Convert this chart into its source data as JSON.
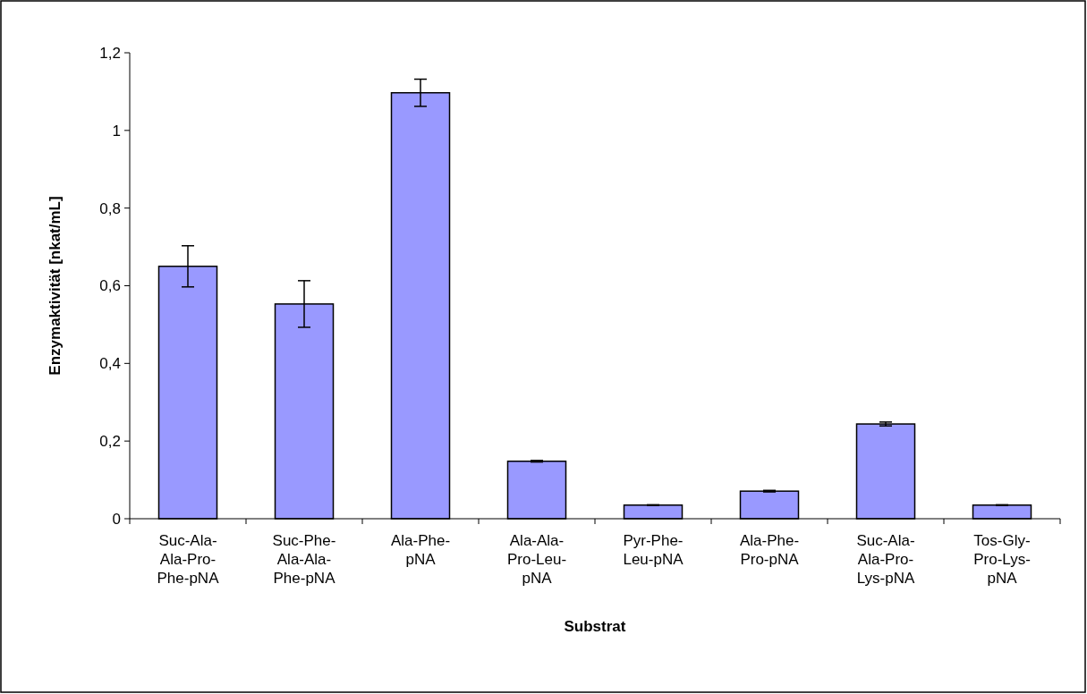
{
  "chart_data": {
    "type": "bar",
    "xlabel": "Substrat",
    "ylabel": "Enzymaktivität [nkat/mL]",
    "categories": [
      "Suc-Ala-Ala-Pro-Phe-pNA",
      "Suc-Phe-Ala-Ala-Phe-pNA",
      "Ala-Phe-pNA",
      "Ala-Ala-Pro-Leu-pNA",
      "Pyr-Phe-Leu-pNA",
      "Ala-Phe-Pro-pNA",
      "Suc-Ala-Ala-Pro-Lys-pNA",
      "Tos-Gly-Pro-Lys-pNA"
    ],
    "values": [
      0.65,
      0.553,
      1.097,
      0.148,
      0.035,
      0.071,
      0.244,
      0.035
    ],
    "errors": [
      0.053,
      0.06,
      0.035,
      0.002,
      0.001,
      0.002,
      0.005,
      0.001
    ],
    "color": "#9999ff",
    "ylim": [
      0,
      1.2
    ],
    "yticks": [
      0,
      {
        "value": 0.2,
        "label": "0,2"
      },
      {
        "value": 0.4,
        "label": "0,4"
      },
      {
        "value": 0.6,
        "label": "0,6"
      },
      {
        "value": 0.8,
        "label": "0,8"
      },
      1,
      {
        "value": 1.2,
        "label": "1,2"
      }
    ],
    "grid": false
  }
}
